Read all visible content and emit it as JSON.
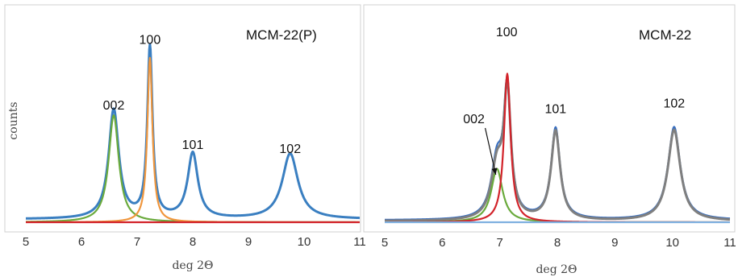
{
  "chart_data": [
    {
      "type": "line",
      "title": "MCM-22(P)",
      "xlabel": "deg 2Θ",
      "ylabel": "counts",
      "xlim": [
        5,
        11
      ],
      "x_ticks": [
        "5",
        "6",
        "7",
        "8",
        "9",
        "10",
        "11"
      ],
      "y_ticks": "none",
      "grid": false,
      "legend": "none",
      "peak_labels": [
        {
          "text": "002",
          "x": 6.58,
          "y": 0.57
        },
        {
          "text": "100",
          "x": 7.23,
          "y": 0.9
        },
        {
          "text": "101",
          "x": 8.0,
          "y": 0.37
        },
        {
          "text": "102",
          "x": 9.75,
          "y": 0.35
        }
      ],
      "series": [
        {
          "color": "#3a7fc1",
          "role": "measured + fit",
          "peaks": [
            {
              "center": 6.58,
              "height": 0.55,
              "hwhm": 0.11
            },
            {
              "center": 7.23,
              "height": 0.86,
              "hwhm": 0.055
            },
            {
              "center": 8.0,
              "height": 0.33,
              "hwhm": 0.11
            },
            {
              "center": 9.75,
              "height": 0.33,
              "hwhm": 0.17
            }
          ],
          "baseline": 0.015
        },
        {
          "color": "#6aaa3c",
          "role": "002 component",
          "peaks": [
            {
              "center": 6.58,
              "height": 0.54,
              "hwhm": 0.11
            }
          ],
          "baseline": 0.0
        },
        {
          "color": "#f0963c",
          "role": "100 component",
          "peaks": [
            {
              "center": 7.23,
              "height": 0.83,
              "hwhm": 0.055
            }
          ],
          "baseline": 0.0
        },
        {
          "color": "#d2232a",
          "role": "baseline",
          "peaks": [],
          "baseline": 0.0
        }
      ]
    },
    {
      "type": "line",
      "title": "MCM-22",
      "xlabel": "deg 2Θ",
      "ylabel": "",
      "xlim": [
        5,
        11
      ],
      "x_ticks": [
        "5",
        "6",
        "7",
        "8",
        "9",
        "10",
        "11"
      ],
      "y_ticks": "none",
      "grid": false,
      "legend": "none",
      "peak_labels": [
        {
          "text": "002",
          "x": 6.55,
          "y": 0.5
        },
        {
          "text": "100",
          "x": 7.12,
          "y": 0.94
        },
        {
          "text": "101",
          "x": 7.97,
          "y": 0.55
        },
        {
          "text": "102",
          "x": 10.03,
          "y": 0.58
        }
      ],
      "series": [
        {
          "color": "#3a6fbf",
          "role": "measured",
          "peaks": [
            {
              "center": 6.95,
              "height": 0.28,
              "hwhm": 0.12
            },
            {
              "center": 7.13,
              "height": 0.63,
              "hwhm": 0.075
            },
            {
              "center": 7.97,
              "height": 0.46,
              "hwhm": 0.095
            },
            {
              "center": 10.03,
              "height": 0.47,
              "hwhm": 0.13
            }
          ],
          "baseline": 0.01
        },
        {
          "color": "#7f7f7f",
          "role": "fit",
          "peaks": [
            {
              "center": 6.95,
              "height": 0.26,
              "hwhm": 0.12
            },
            {
              "center": 7.13,
              "height": 0.63,
              "hwhm": 0.075
            },
            {
              "center": 7.97,
              "height": 0.45,
              "hwhm": 0.095
            },
            {
              "center": 10.03,
              "height": 0.46,
              "hwhm": 0.13
            }
          ],
          "baseline": 0.005
        },
        {
          "color": "#6aaa3c",
          "role": "002 component",
          "peaks": [
            {
              "center": 6.95,
              "height": 0.27,
              "hwhm": 0.12
            }
          ],
          "baseline": 0.0
        },
        {
          "color": "#d2232a",
          "role": "100 component",
          "peaks": [
            {
              "center": 7.13,
              "height": 0.75,
              "hwhm": 0.07
            }
          ],
          "baseline": 0.0
        },
        {
          "color": "#7fb0e0",
          "role": "baseline",
          "peaks": [],
          "baseline": 0.0
        }
      ],
      "annotation_arrow": {
        "from_label": "002",
        "to": {
          "x": 6.93,
          "y": 0.24
        }
      }
    }
  ]
}
